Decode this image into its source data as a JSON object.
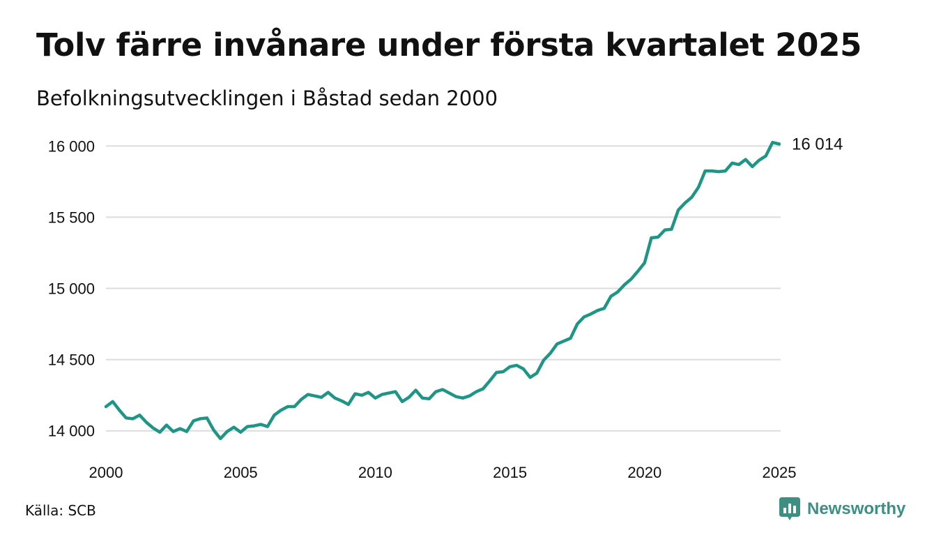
{
  "header": {
    "title": "Tolv färre invånare under första kvartalet 2025",
    "subtitle": "Befolkningsutvecklingen i Båstad sedan 2000"
  },
  "footer": {
    "source": "Källa: SCB",
    "brand": "Newsworthy",
    "brand_icon": "newsworthy-logo-icon"
  },
  "colors": {
    "line": "#1f9585",
    "grid": "#dcdcdc",
    "brand": "#3d8f82"
  },
  "chart_data": {
    "type": "line",
    "title": "Tolv färre invånare under första kvartalet 2025",
    "subtitle": "Befolkningsutvecklingen i Båstad sedan 2000",
    "xlabel": "",
    "ylabel": "",
    "x_range": [
      "2000-Q1",
      "2025-Q1"
    ],
    "ylim": [
      13930,
      16080
    ],
    "y_ticks": [
      14000,
      14500,
      15000,
      15500,
      16000
    ],
    "y_tick_labels": [
      "14 000",
      "14 500",
      "15 000",
      "15 500",
      "16 000"
    ],
    "x_ticks": [
      "2000",
      "2005",
      "2010",
      "2015",
      "2020",
      "2025"
    ],
    "grid": "horizontal",
    "end_label": "16 014",
    "series": [
      {
        "name": "",
        "x": [
          "2000-Q1",
          "2000-Q2",
          "2000-Q3",
          "2000-Q4",
          "2001-Q1",
          "2001-Q2",
          "2001-Q3",
          "2001-Q4",
          "2002-Q1",
          "2002-Q2",
          "2002-Q3",
          "2002-Q4",
          "2003-Q1",
          "2003-Q2",
          "2003-Q3",
          "2003-Q4",
          "2004-Q1",
          "2004-Q2",
          "2004-Q3",
          "2004-Q4",
          "2005-Q1",
          "2005-Q2",
          "2005-Q3",
          "2005-Q4",
          "2006-Q1",
          "2006-Q2",
          "2006-Q3",
          "2006-Q4",
          "2007-Q1",
          "2007-Q2",
          "2007-Q3",
          "2007-Q4",
          "2008-Q1",
          "2008-Q2",
          "2008-Q3",
          "2008-Q4",
          "2009-Q1",
          "2009-Q2",
          "2009-Q3",
          "2009-Q4",
          "2010-Q1",
          "2010-Q2",
          "2010-Q3",
          "2010-Q4",
          "2011-Q1",
          "2011-Q2",
          "2011-Q3",
          "2011-Q4",
          "2012-Q1",
          "2012-Q2",
          "2012-Q3",
          "2012-Q4",
          "2013-Q1",
          "2013-Q2",
          "2013-Q3",
          "2013-Q4",
          "2014-Q1",
          "2014-Q2",
          "2014-Q3",
          "2014-Q4",
          "2015-Q1",
          "2015-Q2",
          "2015-Q3",
          "2015-Q4",
          "2016-Q1",
          "2016-Q2",
          "2016-Q3",
          "2016-Q4",
          "2017-Q1",
          "2017-Q2",
          "2017-Q3",
          "2017-Q4",
          "2018-Q1",
          "2018-Q2",
          "2018-Q3",
          "2018-Q4",
          "2019-Q1",
          "2019-Q2",
          "2019-Q3",
          "2019-Q4",
          "2020-Q1",
          "2020-Q2",
          "2020-Q3",
          "2020-Q4",
          "2021-Q1",
          "2021-Q2",
          "2021-Q3",
          "2021-Q4",
          "2022-Q1",
          "2022-Q2",
          "2022-Q3",
          "2022-Q4",
          "2023-Q1",
          "2023-Q2",
          "2023-Q3",
          "2023-Q4",
          "2024-Q1",
          "2024-Q2",
          "2024-Q3",
          "2024-Q4",
          "2025-Q1"
        ],
        "values": [
          14170,
          14205,
          14145,
          14090,
          14085,
          14110,
          14060,
          14020,
          13990,
          14040,
          13995,
          14015,
          13995,
          14070,
          14085,
          14090,
          14005,
          13945,
          13995,
          14025,
          13990,
          14030,
          14035,
          14045,
          14030,
          14110,
          14145,
          14170,
          14170,
          14220,
          14255,
          14245,
          14235,
          14270,
          14230,
          14210,
          14185,
          14260,
          14250,
          14270,
          14230,
          14255,
          14265,
          14275,
          14205,
          14235,
          14285,
          14230,
          14225,
          14275,
          14290,
          14265,
          14240,
          14230,
          14245,
          14275,
          14295,
          14350,
          14410,
          14415,
          14450,
          14460,
          14435,
          14375,
          14405,
          14495,
          14545,
          14610,
          14630,
          14650,
          14750,
          14800,
          14820,
          14845,
          14860,
          14945,
          14975,
          15025,
          15065,
          15120,
          15180,
          15355,
          15360,
          15410,
          15415,
          15550,
          15600,
          15640,
          15710,
          15825,
          15825,
          15820,
          15825,
          15880,
          15870,
          15905,
          15855,
          15900,
          15930,
          16025,
          16014
        ]
      }
    ]
  }
}
